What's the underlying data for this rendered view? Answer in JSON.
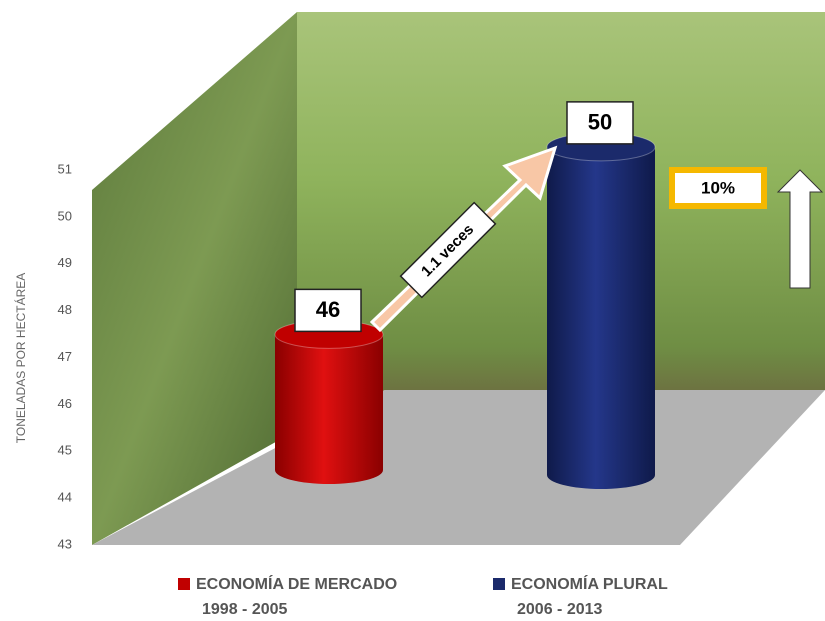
{
  "chart_data": {
    "type": "bar",
    "y_label": "TONELADAS POR HECTÁREA",
    "categories": [
      "1998 - 2005",
      "2006 - 2013"
    ],
    "series": [
      {
        "name": "ECONOMÍA DE MERCADO",
        "color": "#c00000",
        "values": [
          46,
          null
        ]
      },
      {
        "name": "ECONOMÍA PLURAL",
        "color": "#1b2a6b",
        "values": [
          null,
          50
        ]
      }
    ],
    "ylim": [
      43,
      51
    ],
    "yticks": [
      43,
      44,
      45,
      46,
      47,
      48,
      49,
      50,
      51
    ],
    "annotations": [
      "1.1 veces",
      "10%"
    ]
  }
}
